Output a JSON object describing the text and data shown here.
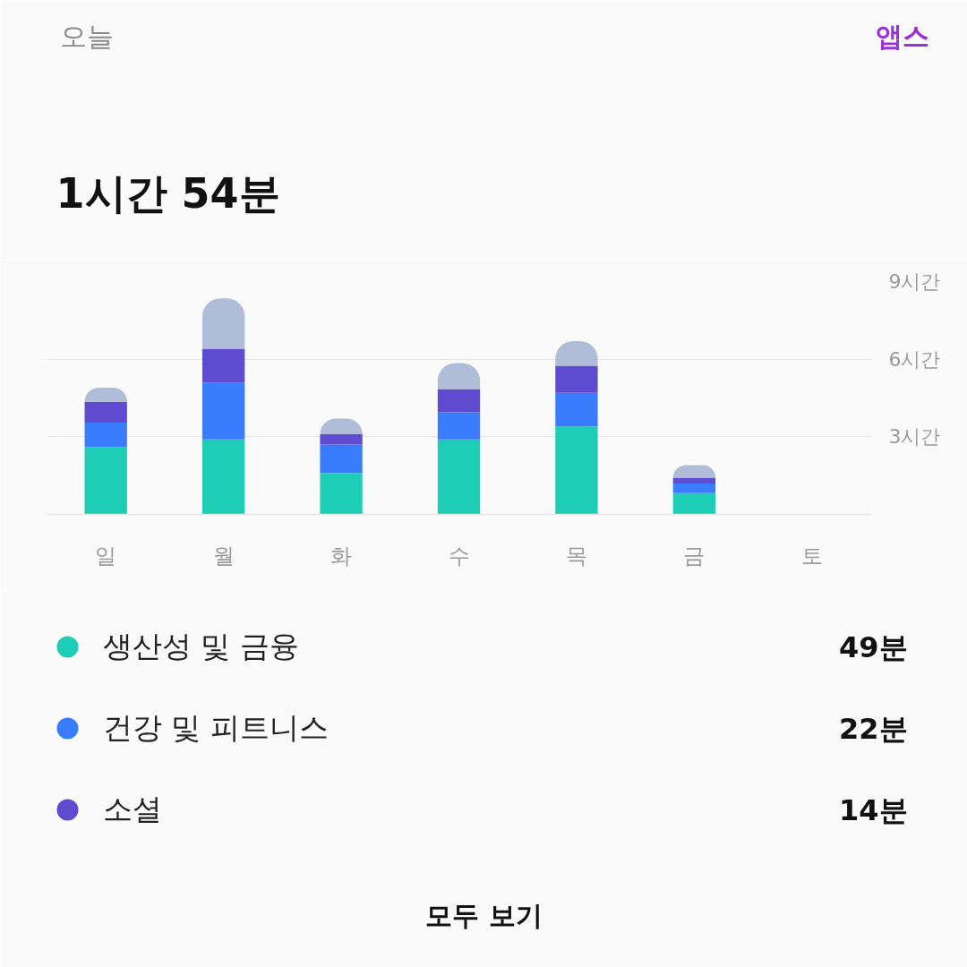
{
  "chart_data": {
    "type": "bar",
    "stacked": true,
    "title": "1시간 54분",
    "subtitle": "오늘",
    "categories": [
      "일",
      "월",
      "화",
      "수",
      "목",
      "금",
      "토"
    ],
    "series": [
      {
        "name": "생산성 및 금융",
        "color": "#1ecdb5",
        "values": [
          2.6,
          2.9,
          1.6,
          2.9,
          3.4,
          0.82,
          null
        ]
      },
      {
        "name": "건강 및 피트니스",
        "color": "#3a7cff",
        "values": [
          0.95,
          2.2,
          1.1,
          1.05,
          1.3,
          0.37,
          null
        ]
      },
      {
        "name": "소셜",
        "color": "#5e4bcf",
        "values": [
          0.8,
          1.3,
          0.4,
          0.9,
          1.05,
          0.23,
          null
        ]
      },
      {
        "color": "#afbdd9",
        "values": [
          0.55,
          1.95,
          0.6,
          1.0,
          0.95,
          0.48,
          null
        ]
      }
    ],
    "ylim": [
      0,
      9
    ],
    "yticks": [
      {
        "value": 3,
        "label": "3시간"
      },
      {
        "value": 6,
        "label": "6시간"
      },
      {
        "value": 9,
        "label": "9시간"
      }
    ],
    "grid": "y",
    "legend": "bottom",
    "annotations": [
      "앱스",
      "49분",
      "22분",
      "14분",
      "모두 보기"
    ]
  }
}
